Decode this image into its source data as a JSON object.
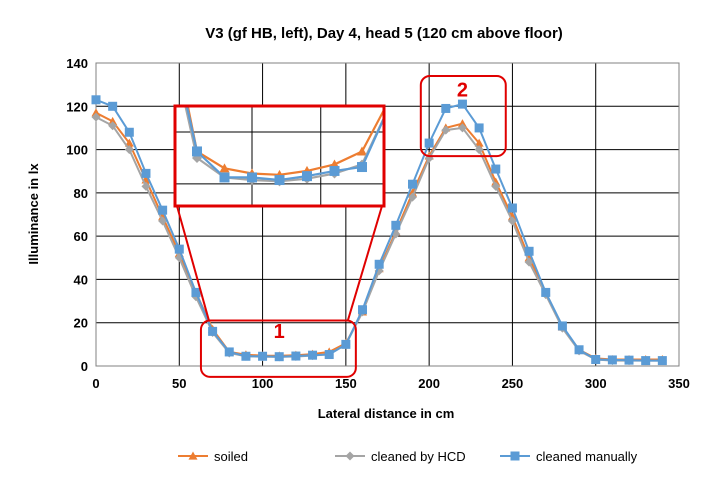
{
  "chart_data": {
    "type": "line",
    "title": "V3 (gf HB, left), Day 4, head 5 (120 cm above floor)",
    "xlabel": "Lateral distance in cm",
    "ylabel": "Illuminance in lx",
    "xlim": [
      0,
      350
    ],
    "ylim": [
      0,
      140
    ],
    "xticks": [
      0,
      50,
      100,
      150,
      200,
      250,
      300,
      350
    ],
    "yticks": [
      0,
      20,
      40,
      60,
      80,
      100,
      120,
      140
    ],
    "grid": true,
    "legend_position": "bottom",
    "x": [
      0,
      10,
      20,
      30,
      40,
      50,
      60,
      70,
      80,
      90,
      100,
      110,
      120,
      130,
      140,
      150,
      160,
      170,
      180,
      190,
      200,
      210,
      220,
      230,
      240,
      250,
      260,
      270,
      280,
      290,
      300,
      310,
      320,
      330,
      340
    ],
    "series": [
      {
        "name": "soiled",
        "color": "#ED7D31",
        "marker": "triangle",
        "values": [
          117,
          113,
          103,
          86,
          69,
          52,
          34,
          17,
          6.5,
          5.2,
          4.8,
          4.7,
          5,
          5.5,
          6.5,
          10.5,
          25,
          45,
          62,
          80,
          97,
          110,
          112,
          103,
          85,
          69,
          50,
          34,
          18,
          7.5,
          3.5,
          3,
          3,
          3,
          3
        ]
      },
      {
        "name": "cleaned by HCD",
        "color": "#A5A5A5",
        "marker": "diamond",
        "values": [
          115,
          111,
          100,
          83,
          67,
          50,
          32,
          15.5,
          6,
          4.5,
          4.3,
          4.2,
          4.4,
          4.8,
          5.5,
          10,
          25,
          44,
          61,
          78,
          96,
          109,
          110,
          100,
          83,
          67,
          48,
          33,
          17.5,
          7,
          3,
          2.5,
          2.5,
          2.5,
          2.5
        ]
      },
      {
        "name": "cleaned manually",
        "color": "#5B9BD5",
        "marker": "square",
        "values": [
          123,
          120,
          108,
          89,
          72,
          54,
          34,
          16,
          6.5,
          4.5,
          4.5,
          4.3,
          4.6,
          5,
          5.3,
          10,
          26,
          47,
          65,
          84,
          103,
          119,
          121,
          110,
          91,
          73,
          53,
          34,
          18.5,
          7.5,
          3,
          2.8,
          2.7,
          2.5,
          2.5
        ]
      }
    ],
    "annotations": [
      {
        "label": "1",
        "color": "#E00000"
      },
      {
        "label": "2",
        "color": "#E00000"
      }
    ]
  }
}
